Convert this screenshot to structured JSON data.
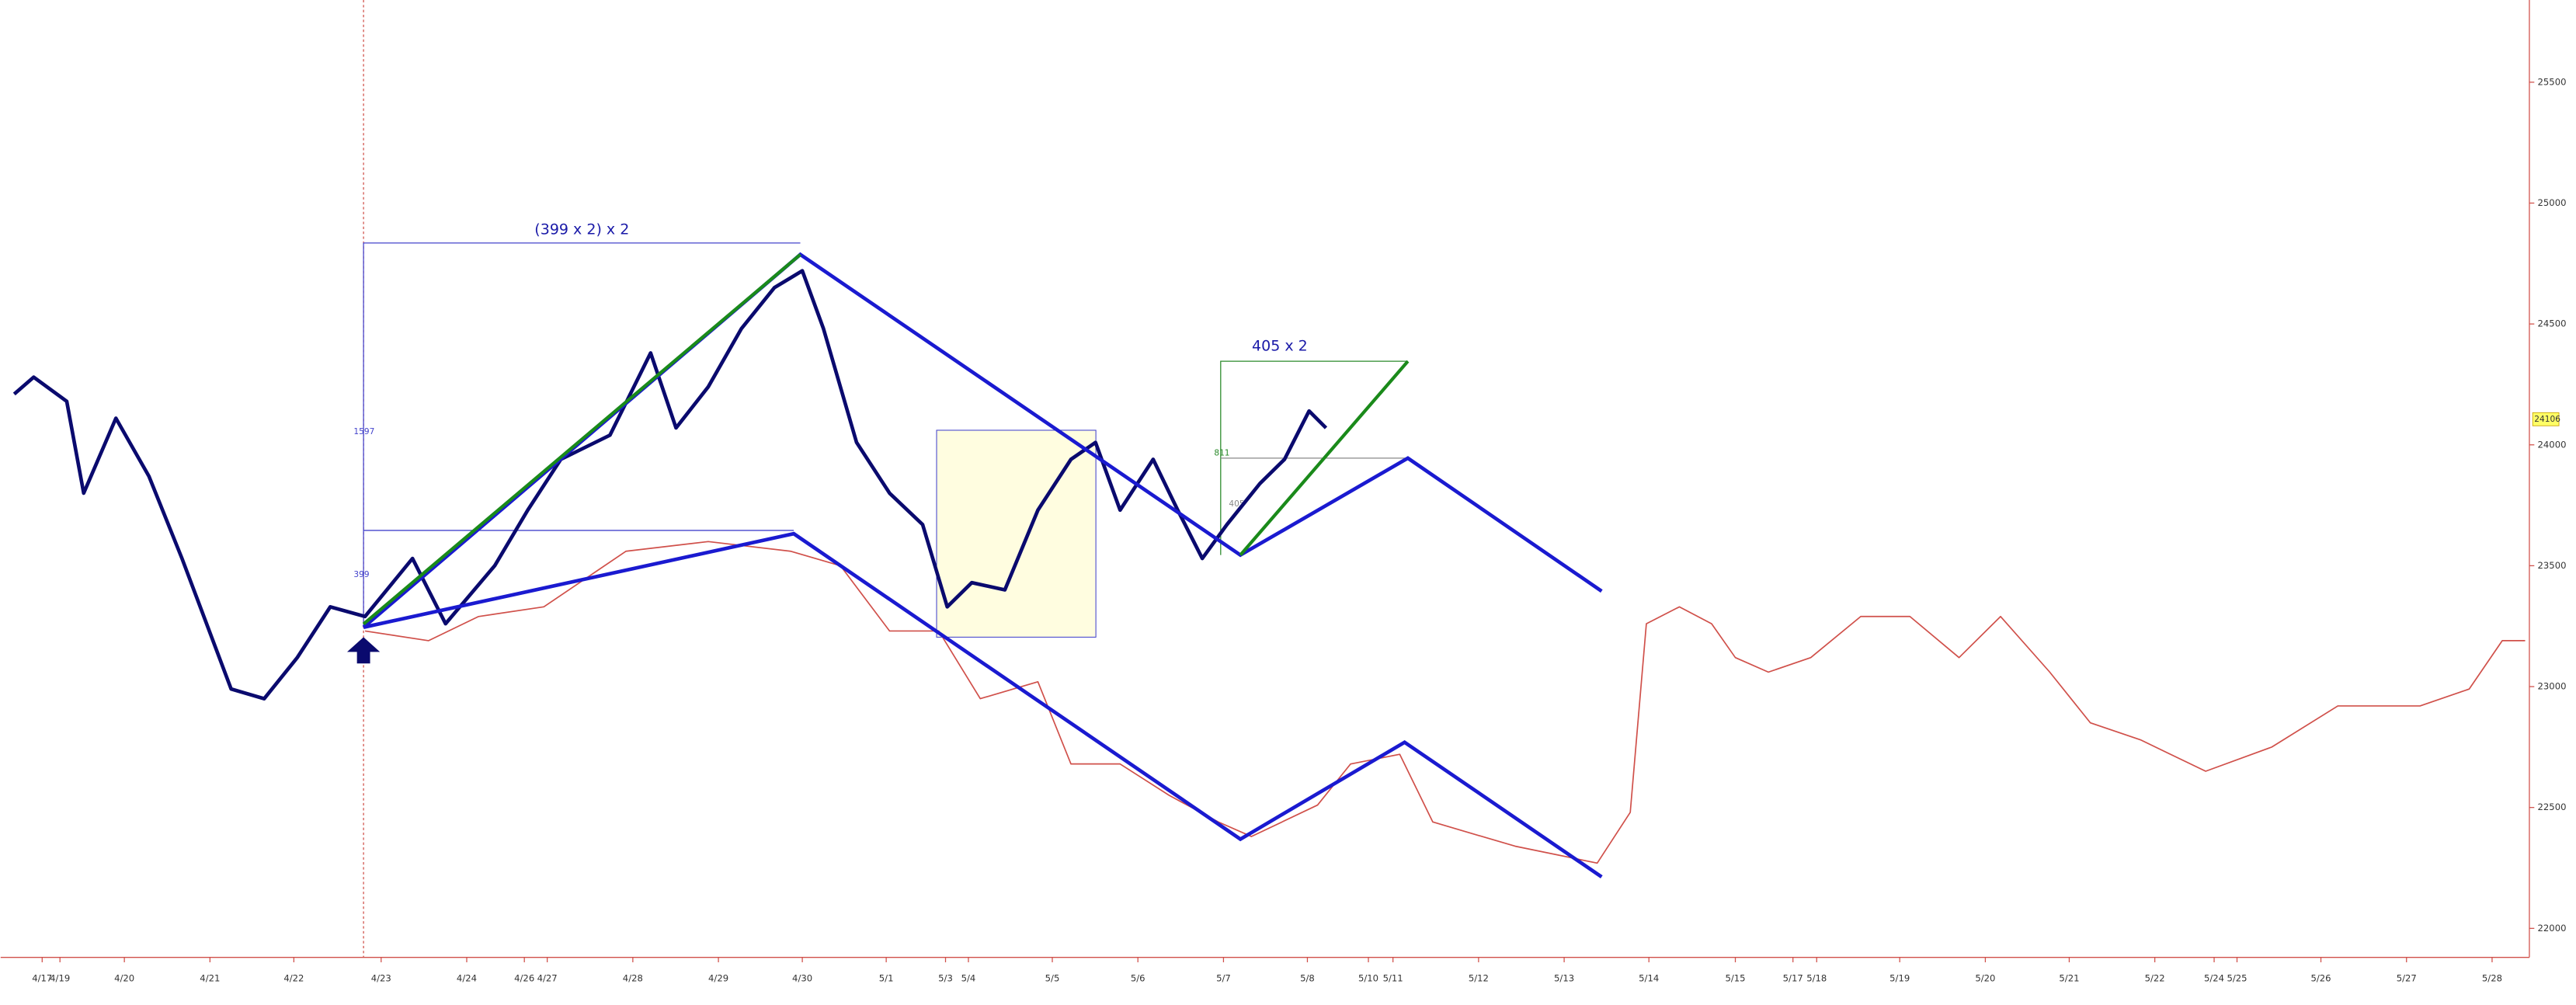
{
  "chart_data": {
    "type": "line",
    "xlim": [
      -0.49,
      29.35
    ],
    "ylim": [
      21880,
      25840
    ],
    "xticks": [
      {
        "value": 0,
        "label": "4/17"
      },
      {
        "value": 0.21,
        "label": "4/19"
      },
      {
        "value": 0.97,
        "label": "4/20"
      },
      {
        "value": 1.98,
        "label": "4/21"
      },
      {
        "value": 2.97,
        "label": "4/22"
      },
      {
        "value": 4.0,
        "label": "4/23"
      },
      {
        "value": 5.01,
        "label": "4/24"
      },
      {
        "value": 5.69,
        "label": "4/26"
      },
      {
        "value": 5.96,
        "label": "4/27"
      },
      {
        "value": 6.97,
        "label": "4/28"
      },
      {
        "value": 7.98,
        "label": "4/29"
      },
      {
        "value": 8.97,
        "label": "4/30"
      },
      {
        "value": 9.96,
        "label": "5/1"
      },
      {
        "value": 10.66,
        "label": "5/3"
      },
      {
        "value": 10.93,
        "label": "5/4"
      },
      {
        "value": 11.92,
        "label": "5/5"
      },
      {
        "value": 12.93,
        "label": "5/6"
      },
      {
        "value": 13.94,
        "label": "5/7"
      },
      {
        "value": 14.93,
        "label": "5/8"
      },
      {
        "value": 15.65,
        "label": "5/10"
      },
      {
        "value": 15.94,
        "label": "5/11"
      },
      {
        "value": 16.95,
        "label": "5/12"
      },
      {
        "value": 17.96,
        "label": "5/13"
      },
      {
        "value": 18.96,
        "label": "5/14"
      },
      {
        "value": 19.98,
        "label": "5/15"
      },
      {
        "value": 20.66,
        "label": "5/17"
      },
      {
        "value": 20.94,
        "label": "5/18"
      },
      {
        "value": 21.92,
        "label": "5/19"
      },
      {
        "value": 22.93,
        "label": "5/20"
      },
      {
        "value": 23.92,
        "label": "5/21"
      },
      {
        "value": 24.93,
        "label": "5/22"
      },
      {
        "value": 25.63,
        "label": "5/24"
      },
      {
        "value": 25.9,
        "label": "5/25"
      },
      {
        "value": 26.89,
        "label": "5/26"
      },
      {
        "value": 27.9,
        "label": "5/27"
      },
      {
        "value": 28.91,
        "label": "5/28"
      }
    ],
    "yticks": [
      22000,
      22500,
      23000,
      23500,
      24000,
      24500,
      25000,
      25500
    ],
    "price_tag": 24106,
    "series": [
      {
        "color": "#0a0a6e",
        "x": [
          -0.33,
          -0.1,
          0.29,
          0.49,
          0.87,
          1.26,
          1.65,
          1.94,
          2.23,
          2.62,
          3.01,
          3.4,
          3.81,
          4.37,
          4.76,
          5.34,
          5.73,
          6.12,
          6.7,
          7.18,
          7.48,
          7.86,
          8.25,
          8.64,
          8.97,
          9.22,
          9.61,
          10.0,
          10.39,
          10.68,
          10.97,
          11.36,
          11.75,
          12.14,
          12.43,
          12.72,
          13.11,
          13.4,
          13.69,
          13.98,
          14.37,
          14.66,
          14.95,
          15.15
        ],
        "values": [
          24210,
          24280,
          24180,
          23800,
          24110,
          23870,
          23530,
          23260,
          22990,
          22950,
          23120,
          23330,
          23290,
          23530,
          23260,
          23500,
          23730,
          23940,
          24040,
          24380,
          24070,
          24240,
          24480,
          24650,
          24720,
          24480,
          24010,
          23800,
          23670,
          23330,
          23430,
          23400,
          23730,
          23940,
          24010,
          23730,
          23940,
          23730,
          23530,
          23670,
          23840,
          23940,
          24140,
          24070
        ]
      },
      {
        "color": "#d0504a",
        "x": [
          3.81,
          4.56,
          5.15,
          5.92,
          6.89,
          7.86,
          8.83,
          9.42,
          10.0,
          10.58,
          11.07,
          11.75,
          12.14,
          12.72,
          13.3,
          13.88,
          14.27,
          15.05,
          15.44,
          16.02,
          16.41,
          17.38,
          18.35,
          18.74,
          18.93,
          19.32,
          19.7,
          19.98,
          20.37,
          20.87,
          21.46,
          22.04,
          22.62,
          23.11,
          23.69,
          24.17,
          24.76,
          25.53,
          26.31,
          27.09,
          28.06,
          28.64,
          29.03,
          29.3
        ],
        "values": [
          23230,
          23190,
          23290,
          23330,
          23560,
          23600,
          23560,
          23500,
          23230,
          23230,
          22950,
          23020,
          22680,
          22680,
          22550,
          22440,
          22380,
          22510,
          22680,
          22720,
          22440,
          22340,
          22270,
          22480,
          23260,
          23330,
          23260,
          23120,
          23060,
          23120,
          23290,
          23290,
          23120,
          23290,
          23060,
          22850,
          22780,
          22650,
          22750,
          22920,
          22920,
          22990,
          23190,
          23190
        ]
      }
    ]
  },
  "annotations": {
    "measure_top": "(399 x 2) x 2",
    "measure_right": "405 x 2",
    "height_left": "1597",
    "height_small": "399",
    "height_right": "811",
    "height_right_small": "405"
  }
}
